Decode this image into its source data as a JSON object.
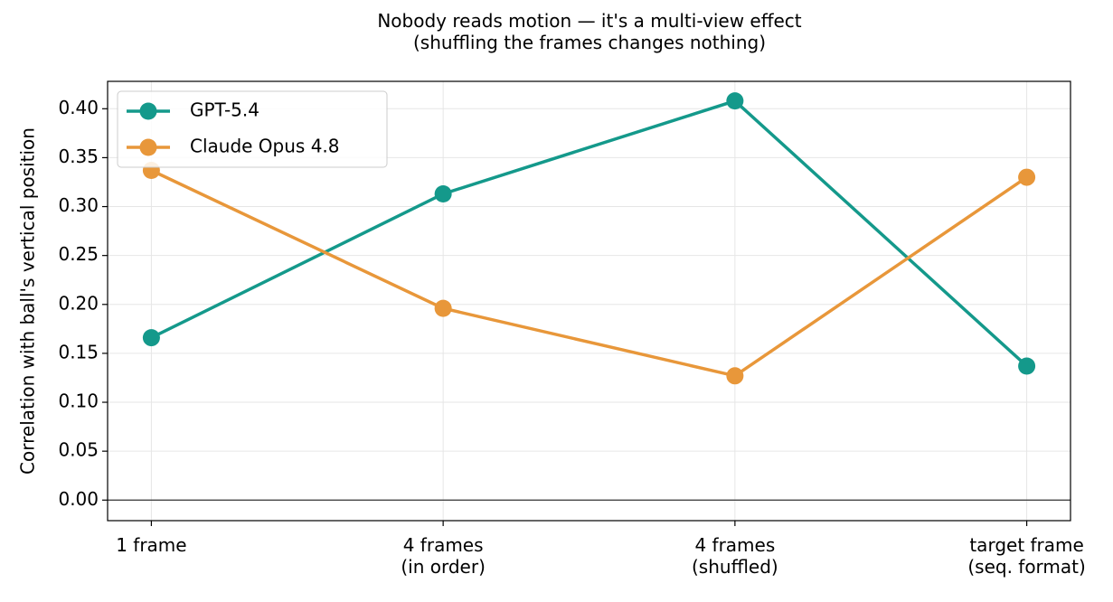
{
  "chart_data": {
    "type": "line",
    "title": "Nobody reads motion — it's a multi-view effect\n(shuffling the frames changes nothing)",
    "y_label": "Correlation with ball's vertical position",
    "categories": [
      "1 frame",
      "4 frames\n(in order)",
      "4 frames\n(shuffled)",
      "target frame\n(seq. format)"
    ],
    "series": [
      {
        "name": "GPT-5.4",
        "color": "#14998b",
        "values": [
          0.166,
          0.313,
          0.408,
          0.137
        ]
      },
      {
        "name": "Claude Opus 4.8",
        "color": "#e8973a",
        "values": [
          0.337,
          0.196,
          0.127,
          0.33
        ]
      }
    ],
    "ylim": [
      -0.021,
      0.428
    ],
    "yticks": [
      {
        "value": 0,
        "label": "0.00"
      },
      {
        "value": 0.05,
        "label": "0.05"
      },
      {
        "value": 0.1,
        "label": "0.10"
      },
      {
        "value": 0.15,
        "label": "0.15"
      },
      {
        "value": 0.2,
        "label": "0.20"
      },
      {
        "value": 0.25,
        "label": "0.25"
      },
      {
        "value": 0.3,
        "label": "0.30"
      },
      {
        "value": 0.35,
        "label": "0.35"
      },
      {
        "value": 0.4,
        "label": "0.40"
      }
    ],
    "grid": true,
    "zero_line": true,
    "legend": "upper-left"
  }
}
